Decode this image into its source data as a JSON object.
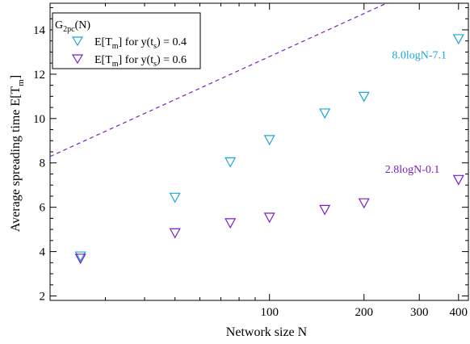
{
  "chart_data": {
    "type": "scatter",
    "xscale": "log",
    "xlim": [
      20,
      430
    ],
    "ylim": [
      1.8,
      15.2
    ],
    "xticks": [
      100,
      200,
      300,
      400
    ],
    "xtick_labels": [
      "100",
      "200",
      "300",
      "400"
    ],
    "yticks": [
      2,
      4,
      6,
      8,
      10,
      12,
      14
    ],
    "ytick_labels": [
      "2",
      "4",
      "6",
      "8",
      "10",
      "12",
      "14"
    ],
    "xlabel": "Network size N",
    "ylabel_main": "Average spreading time E[T",
    "ylabel_sub": "m",
    "ylabel_end": "]",
    "grid": false,
    "legend": {
      "position": "top-left",
      "title_main": "G",
      "title_sub": "2pc",
      "title_end": "(N)"
    },
    "series": [
      {
        "label_parts": [
          "E[T",
          "m",
          "] for y(t",
          "s",
          ") = 0.4"
        ],
        "color": "#1aa7d8",
        "marker": "triangle-down-open",
        "x": [
          25,
          50,
          75,
          100,
          150,
          200,
          400
        ],
        "y": [
          3.8,
          6.45,
          8.05,
          9.05,
          10.25,
          11.0,
          13.6
        ],
        "fit": {
          "label": "8.0logN-7.1",
          "slope": 8.0,
          "intercept": -7.1,
          "style": "dashed"
        }
      },
      {
        "label_parts": [
          "E[T",
          "m",
          "] for y(t",
          "s",
          ") = 0.6"
        ],
        "color": "#7a1fc2",
        "marker": "triangle-down-open",
        "x": [
          25,
          50,
          75,
          100,
          150,
          200,
          400
        ],
        "y": [
          3.7,
          4.85,
          5.3,
          5.55,
          5.9,
          6.2,
          7.25
        ],
        "fit": {
          "label": "2.8logN-0.1",
          "slope": 2.8,
          "intercept": -0.1,
          "style": "dashed"
        }
      }
    ]
  }
}
